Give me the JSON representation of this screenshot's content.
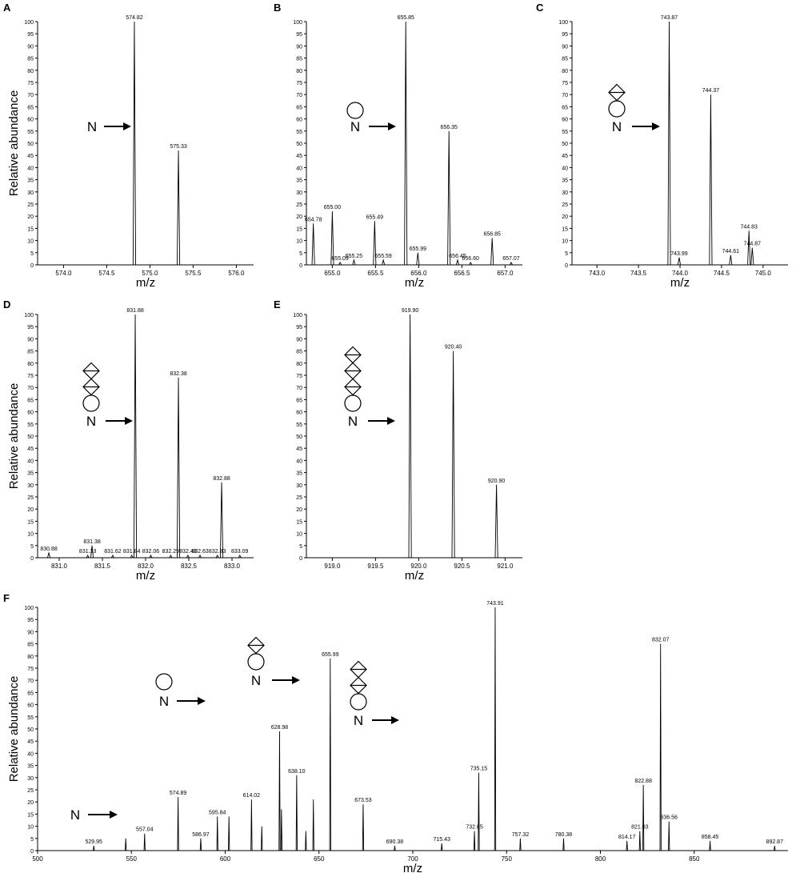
{
  "figure": {
    "panels": [
      "A",
      "B",
      "C",
      "D",
      "E",
      "F"
    ],
    "ylabel": "Relative abundance",
    "xlabel": "m/z",
    "n_label": "N"
  },
  "chart_data": [
    {
      "type": "bar",
      "panel": "A",
      "xlabel": "m/z",
      "ylabel": "Relative abundance",
      "xlim": [
        573.7,
        576.2
      ],
      "ylim": [
        0,
        100
      ],
      "x_ticks": [
        "574.0",
        "574.5",
        "575.0",
        "575.5",
        "576.0"
      ],
      "y_ticks": [
        "0",
        "5",
        "10",
        "15",
        "20",
        "25",
        "30",
        "35",
        "40",
        "45",
        "50",
        "55",
        "60",
        "65",
        "70",
        "75",
        "80",
        "85",
        "90",
        "95",
        "100"
      ],
      "peaks": [
        {
          "mz": 574.82,
          "intensity": 100,
          "label": "574.82"
        },
        {
          "mz": 575.33,
          "intensity": 47,
          "label": "575.33"
        }
      ],
      "glycan": []
    },
    {
      "type": "bar",
      "panel": "B",
      "xlabel": "m/z",
      "ylim": [
        0,
        100
      ],
      "xlim": [
        654.7,
        657.2
      ],
      "x_ticks": [
        "655.0",
        "655.5",
        "656.0",
        "656.5",
        "657.0"
      ],
      "y_ticks": [
        "0",
        "5",
        "10",
        "15",
        "20",
        "25",
        "30",
        "35",
        "40",
        "45",
        "50",
        "55",
        "60",
        "65",
        "70",
        "75",
        "80",
        "85",
        "90",
        "95",
        "100"
      ],
      "peaks": [
        {
          "mz": 654.78,
          "intensity": 17,
          "label": "654.78"
        },
        {
          "mz": 655.0,
          "intensity": 22,
          "label": "655.00"
        },
        {
          "mz": 655.09,
          "intensity": 1,
          "label": "655.09"
        },
        {
          "mz": 655.25,
          "intensity": 2,
          "label": "655.25"
        },
        {
          "mz": 655.49,
          "intensity": 18,
          "label": "655.49"
        },
        {
          "mz": 655.59,
          "intensity": 2,
          "label": "655.59"
        },
        {
          "mz": 655.85,
          "intensity": 100,
          "label": "655.85"
        },
        {
          "mz": 655.99,
          "intensity": 5,
          "label": "655.99"
        },
        {
          "mz": 656.35,
          "intensity": 55,
          "label": "656.35"
        },
        {
          "mz": 656.45,
          "intensity": 2,
          "label": "656.45"
        },
        {
          "mz": 656.6,
          "intensity": 1,
          "label": "656.60"
        },
        {
          "mz": 656.85,
          "intensity": 11,
          "label": "656.85"
        },
        {
          "mz": 657.07,
          "intensity": 1,
          "label": "657.07"
        }
      ],
      "glycan": [
        "circle"
      ]
    },
    {
      "type": "bar",
      "panel": "C",
      "xlabel": "m/z",
      "ylim": [
        0,
        100
      ],
      "xlim": [
        742.7,
        745.3
      ],
      "x_ticks": [
        "743.0",
        "743.5",
        "744.0",
        "744.5",
        "745.0"
      ],
      "y_ticks": [
        "0",
        "5",
        "10",
        "15",
        "20",
        "25",
        "30",
        "35",
        "40",
        "45",
        "50",
        "55",
        "60",
        "65",
        "70",
        "75",
        "80",
        "85",
        "90",
        "95",
        "100"
      ],
      "peaks": [
        {
          "mz": 743.87,
          "intensity": 100,
          "label": "743.87"
        },
        {
          "mz": 743.99,
          "intensity": 3,
          "label": "743.99"
        },
        {
          "mz": 744.37,
          "intensity": 70,
          "label": "744.37"
        },
        {
          "mz": 744.61,
          "intensity": 4,
          "label": "744.61"
        },
        {
          "mz": 744.83,
          "intensity": 14,
          "label": "744.83"
        },
        {
          "mz": 744.87,
          "intensity": 7,
          "label": "744.87"
        }
      ],
      "glycan": [
        "diamond",
        "circle"
      ]
    },
    {
      "type": "bar",
      "panel": "D",
      "xlabel": "m/z",
      "ylabel": "Relative abundance",
      "ylim": [
        0,
        100
      ],
      "xlim": [
        830.75,
        833.25
      ],
      "x_ticks": [
        "831.0",
        "831.5",
        "832.0",
        "832.5",
        "833.0"
      ],
      "y_ticks": [
        "0",
        "5",
        "10",
        "15",
        "20",
        "25",
        "30",
        "35",
        "40",
        "45",
        "50",
        "55",
        "60",
        "65",
        "70",
        "75",
        "80",
        "85",
        "90",
        "95",
        "100"
      ],
      "peaks": [
        {
          "mz": 830.88,
          "intensity": 2,
          "label": "830.88"
        },
        {
          "mz": 831.33,
          "intensity": 1,
          "label": "831.33"
        },
        {
          "mz": 831.38,
          "intensity": 5,
          "label": "831.38"
        },
        {
          "mz": 831.62,
          "intensity": 1,
          "label": "831.62"
        },
        {
          "mz": 831.84,
          "intensity": 1,
          "label": "831.84"
        },
        {
          "mz": 831.88,
          "intensity": 100,
          "label": "831.88"
        },
        {
          "mz": 832.06,
          "intensity": 1,
          "label": "832.06"
        },
        {
          "mz": 832.29,
          "intensity": 1,
          "label": "832.29"
        },
        {
          "mz": 832.38,
          "intensity": 74,
          "label": "832.38"
        },
        {
          "mz": 832.49,
          "intensity": 1,
          "label": "832.49"
        },
        {
          "mz": 832.63,
          "intensity": 1,
          "label": "832.63"
        },
        {
          "mz": 832.83,
          "intensity": 1,
          "label": "832.83"
        },
        {
          "mz": 832.88,
          "intensity": 31,
          "label": "832.88"
        },
        {
          "mz": 833.09,
          "intensity": 1,
          "label": "833.09"
        }
      ],
      "glycan": [
        "diamond",
        "diamond",
        "circle"
      ]
    },
    {
      "type": "bar",
      "panel": "E",
      "xlabel": "m/z",
      "ylim": [
        0,
        100
      ],
      "xlim": [
        918.7,
        921.2
      ],
      "x_ticks": [
        "919.0",
        "919.5",
        "920.0",
        "920.5",
        "921.0"
      ],
      "y_ticks": [
        "0",
        "5",
        "10",
        "15",
        "20",
        "25",
        "30",
        "35",
        "40",
        "45",
        "50",
        "55",
        "60",
        "65",
        "70",
        "75",
        "80",
        "85",
        "90",
        "95",
        "100"
      ],
      "peaks": [
        {
          "mz": 919.9,
          "intensity": 100,
          "label": "919.90"
        },
        {
          "mz": 920.4,
          "intensity": 85,
          "label": "920.40"
        },
        {
          "mz": 920.9,
          "intensity": 30,
          "label": "920.90"
        }
      ],
      "glycan": [
        "diamond",
        "diamond",
        "diamond",
        "circle"
      ]
    },
    {
      "type": "bar",
      "panel": "F",
      "xlabel": "m/z",
      "ylabel": "Relative abundance",
      "ylim": [
        0,
        100
      ],
      "xlim": [
        500,
        900
      ],
      "x_ticks": [
        "500",
        "550",
        "600",
        "650",
        "700",
        "750",
        "800",
        "850"
      ],
      "y_ticks": [
        "0",
        "5",
        "10",
        "15",
        "20",
        "25",
        "30",
        "35",
        "40",
        "45",
        "50",
        "55",
        "60",
        "65",
        "70",
        "75",
        "80",
        "85",
        "90",
        "95",
        "100"
      ],
      "peaks": [
        {
          "mz": 529.95,
          "intensity": 2,
          "label": "529.95"
        },
        {
          "mz": 547.0,
          "intensity": 5,
          "label": ""
        },
        {
          "mz": 557.04,
          "intensity": 7,
          "label": "557.04"
        },
        {
          "mz": 574.89,
          "intensity": 22,
          "label": "574.89"
        },
        {
          "mz": 586.97,
          "intensity": 5,
          "label": "586.97"
        },
        {
          "mz": 595.84,
          "intensity": 14,
          "label": "595.84"
        },
        {
          "mz": 602.0,
          "intensity": 14,
          "label": ""
        },
        {
          "mz": 614.02,
          "intensity": 21,
          "label": "614.02"
        },
        {
          "mz": 619.5,
          "intensity": 10,
          "label": ""
        },
        {
          "mz": 628.98,
          "intensity": 49,
          "label": "628.98"
        },
        {
          "mz": 630.0,
          "intensity": 17,
          "label": ""
        },
        {
          "mz": 638.1,
          "intensity": 31,
          "label": "638.10"
        },
        {
          "mz": 643.0,
          "intensity": 8,
          "label": ""
        },
        {
          "mz": 647.0,
          "intensity": 21,
          "label": ""
        },
        {
          "mz": 655.99,
          "intensity": 79,
          "label": "655.99"
        },
        {
          "mz": 673.53,
          "intensity": 19,
          "label": "673.53"
        },
        {
          "mz": 690.38,
          "intensity": 2,
          "label": "690.38"
        },
        {
          "mz": 715.43,
          "intensity": 3,
          "label": "715.43"
        },
        {
          "mz": 732.85,
          "intensity": 8,
          "label": "732.85"
        },
        {
          "mz": 735.15,
          "intensity": 32,
          "label": "735.15"
        },
        {
          "mz": 743.91,
          "intensity": 100,
          "label": "743.91"
        },
        {
          "mz": 757.32,
          "intensity": 5,
          "label": "757.32"
        },
        {
          "mz": 780.38,
          "intensity": 5,
          "label": "780.38"
        },
        {
          "mz": 814.17,
          "intensity": 4,
          "label": "814.17"
        },
        {
          "mz": 821.03,
          "intensity": 8,
          "label": "821.03"
        },
        {
          "mz": 822.88,
          "intensity": 27,
          "label": "822.88"
        },
        {
          "mz": 832.07,
          "intensity": 85,
          "label": "832.07"
        },
        {
          "mz": 836.56,
          "intensity": 12,
          "label": "836.56"
        },
        {
          "mz": 858.45,
          "intensity": 4,
          "label": "858.45"
        },
        {
          "mz": 892.87,
          "intensity": 2,
          "label": "892.87"
        }
      ],
      "glycan_annotations": [
        {
          "mz": 574.89,
          "glycan": []
        },
        {
          "mz": 655.99,
          "glycan": [
            "circle"
          ]
        },
        {
          "mz": 743.91,
          "glycan": [
            "diamond",
            "circle"
          ]
        },
        {
          "mz": 832.07,
          "glycan": [
            "diamond",
            "diamond",
            "circle"
          ]
        }
      ]
    }
  ]
}
